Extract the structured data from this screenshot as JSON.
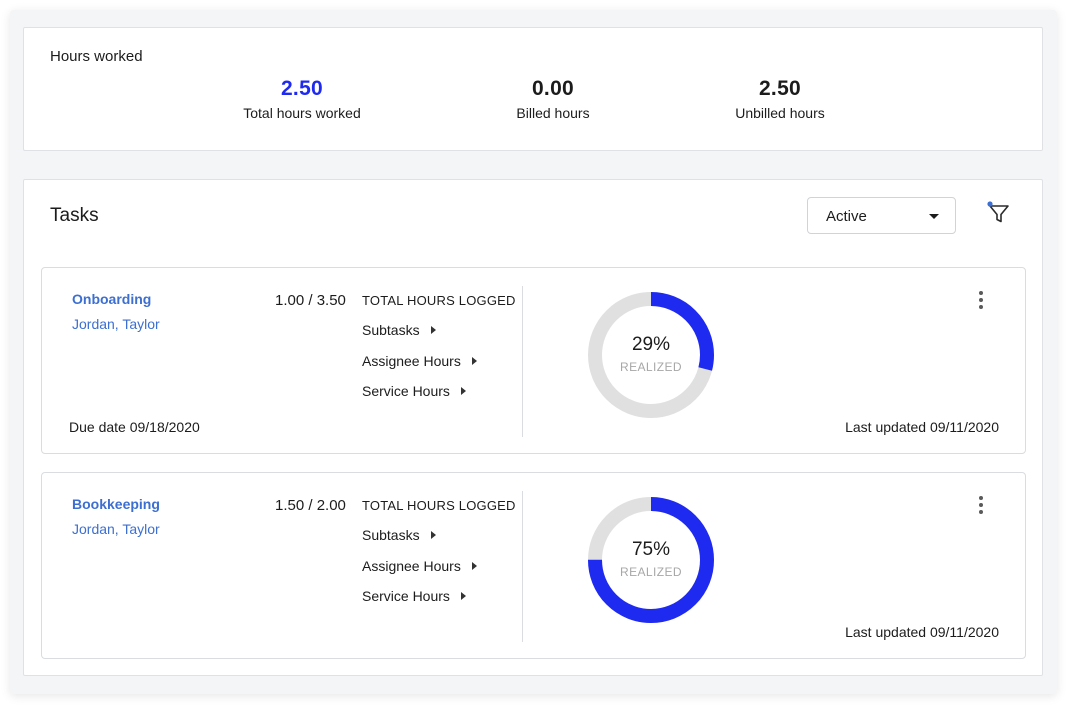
{
  "hours_worked": {
    "title": "Hours worked",
    "stats": [
      {
        "value": "2.50",
        "label": "Total hours worked"
      },
      {
        "value": "0.00",
        "label": "Billed hours"
      },
      {
        "value": "2.50",
        "label": "Unbilled hours"
      }
    ]
  },
  "tasks": {
    "title": "Tasks",
    "status_filter": {
      "selected": "Active"
    },
    "filter_icon": "filter-icon",
    "items": [
      {
        "name": "Onboarding",
        "assignees": "Jordan, Taylor",
        "due_date": "Due date 09/18/2020",
        "hours": "1.00 / 3.50",
        "hours_caption": "TOTAL HOURS LOGGED",
        "expanders": [
          "Subtasks",
          "Assignee Hours",
          "Service Hours"
        ],
        "realized_percent": 29,
        "realized_text": "29%",
        "realized_label": "REALIZED",
        "last_updated": "Last updated 09/11/2020"
      },
      {
        "name": "Bookkeeping",
        "assignees": "Jordan, Taylor",
        "due_date": "",
        "hours": "1.50 / 2.00",
        "hours_caption": "TOTAL HOURS LOGGED",
        "expanders": [
          "Subtasks",
          "Assignee Hours",
          "Service Hours"
        ],
        "realized_percent": 75,
        "realized_text": "75%",
        "realized_label": "REALIZED",
        "last_updated": "Last updated 09/11/2020"
      }
    ]
  },
  "colors": {
    "accent": "#1f2af0",
    "link": "#3c6fd1",
    "donut_track": "#e0e0e0",
    "donut_fill": "#1f2af0"
  }
}
